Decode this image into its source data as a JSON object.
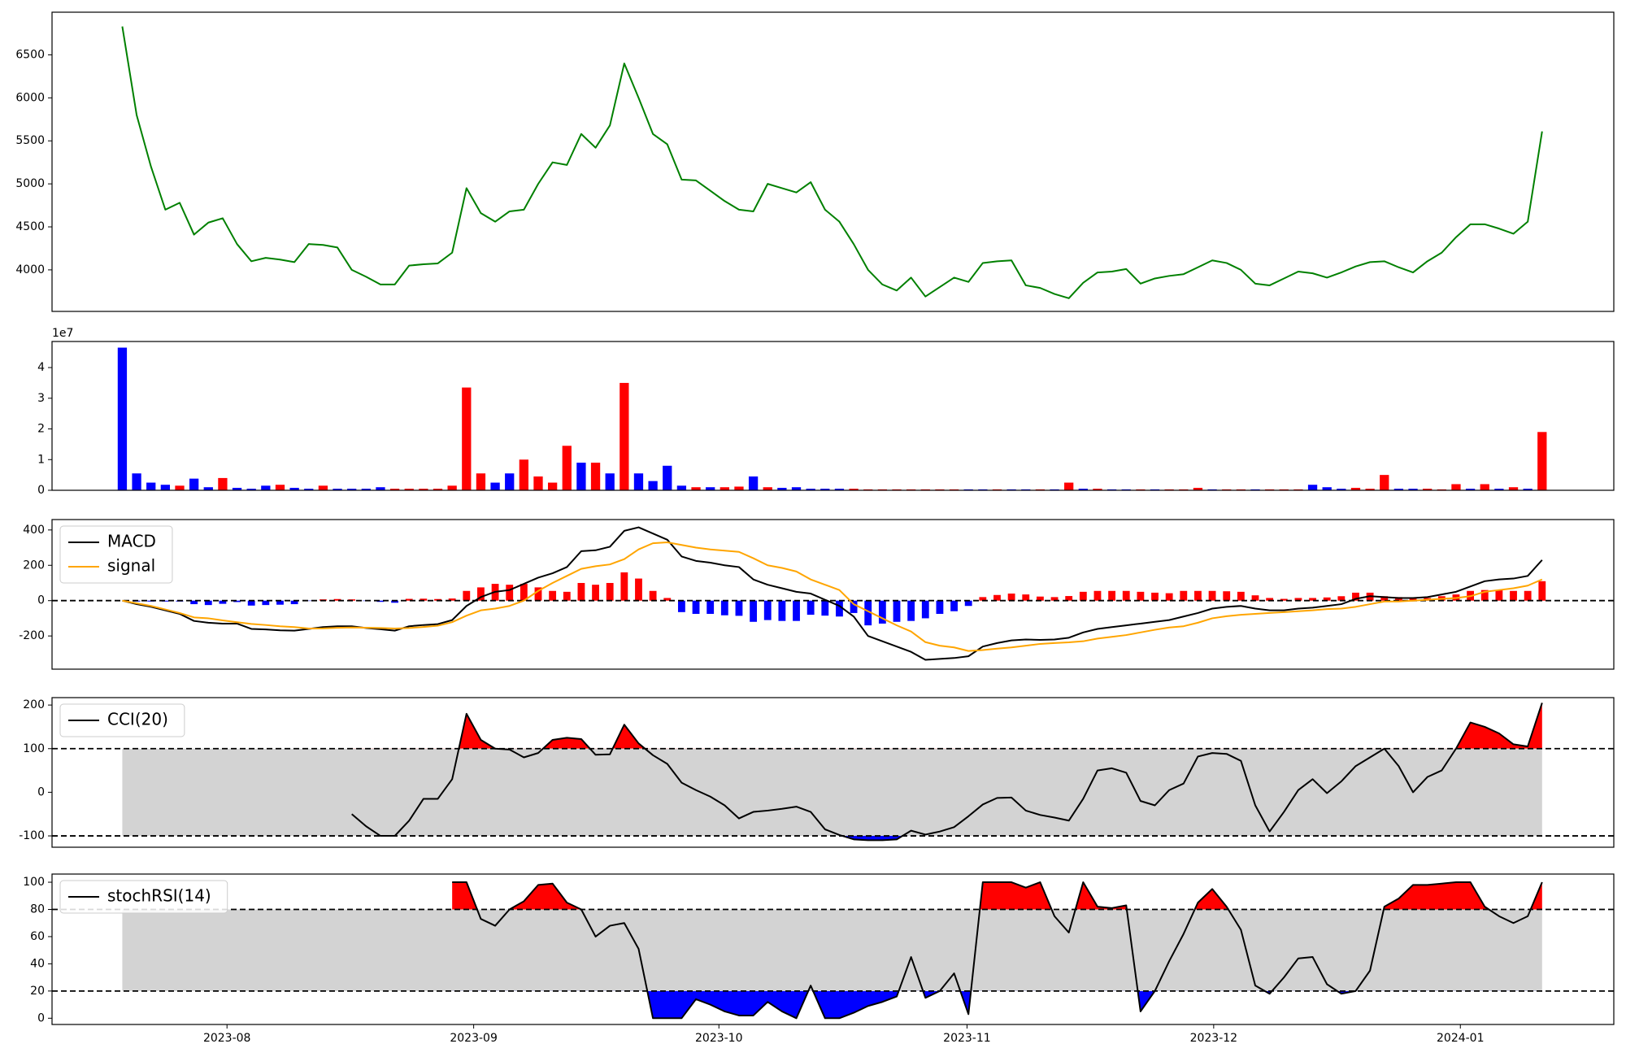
{
  "chart_data": [
    {
      "type": "line",
      "series": [
        {
          "color": "green",
          "values": [
            6830,
            5800,
            5200,
            4700,
            4780,
            4410,
            4550,
            4600,
            4300,
            4100,
            4140,
            4120,
            4090,
            4300,
            4290,
            4260,
            4000,
            3920,
            3830,
            3830,
            4050,
            4065,
            4075,
            4200,
            4950,
            4660,
            4560,
            4680,
            4700,
            5000,
            5250,
            5220,
            5580,
            5420,
            5680,
            6400,
            6000,
            5580,
            5460,
            5050,
            5040,
            4920,
            4800,
            4700,
            4680,
            5000,
            4950,
            4900,
            5020,
            4700,
            4560,
            4300,
            4000,
            3830,
            3760,
            3910,
            3690,
            3800,
            3910,
            3860,
            4080,
            4100,
            4110,
            3820,
            3790,
            3720,
            3670,
            3850,
            3970,
            3980,
            4010,
            3840,
            3900,
            3930,
            3950,
            4030,
            4110,
            4080,
            4000,
            3840,
            3820,
            3900,
            3980,
            3960,
            3910,
            3970,
            4040,
            4090,
            4100,
            4030,
            3970,
            4100,
            4200,
            4380,
            4530,
            4530,
            4480,
            4420,
            4560,
            5610
          ]
        }
      ],
      "ylim": [
        3517,
        6996
      ],
      "yticks": [
        4000,
        4500,
        5000,
        5500,
        6000,
        6500
      ]
    },
    {
      "type": "bar",
      "offset_label": "1e7",
      "values": [
        4.65,
        0.55,
        0.25,
        0.18,
        0.15,
        0.38,
        0.1,
        0.4,
        0.08,
        0.05,
        0.15,
        0.18,
        0.08,
        0.05,
        0.15,
        0.05,
        0.05,
        0.05,
        0.1,
        0.05,
        0.05,
        0.05,
        0.05,
        0.15,
        3.35,
        0.55,
        0.25,
        0.55,
        1.0,
        0.45,
        0.25,
        1.45,
        0.9,
        0.9,
        0.55,
        3.5,
        0.55,
        0.3,
        0.8,
        0.15,
        0.1,
        0.1,
        0.1,
        0.12,
        0.45,
        0.1,
        0.08,
        0.1,
        0.05,
        0.05,
        0.05,
        0.05,
        0.03,
        0.03,
        0.03,
        0.03,
        0.03,
        0.03,
        0.03,
        0.03,
        0.03,
        0.03,
        0.03,
        0.03,
        0.03,
        0.03,
        0.25,
        0.05,
        0.05,
        0.03,
        0.03,
        0.03,
        0.03,
        0.03,
        0.03,
        0.08,
        0.03,
        0.03,
        0.03,
        0.03,
        0.03,
        0.03,
        0.03,
        0.18,
        0.1,
        0.05,
        0.08,
        0.05,
        0.5,
        0.05,
        0.05,
        0.05,
        0.03,
        0.2,
        0.05,
        0.2,
        0.05,
        0.1,
        0.05,
        1.9
      ],
      "colors": [
        "blue",
        "blue",
        "blue",
        "blue",
        "red",
        "blue",
        "blue",
        "red",
        "blue",
        "blue",
        "blue",
        "red",
        "blue",
        "blue",
        "red",
        "blue",
        "blue",
        "blue",
        "blue",
        "red",
        "red",
        "red",
        "red",
        "red",
        "red",
        "red",
        "blue",
        "blue",
        "red",
        "red",
        "red",
        "red",
        "blue",
        "red",
        "blue",
        "red",
        "blue",
        "blue",
        "blue",
        "blue",
        "red",
        "blue",
        "red",
        "red",
        "blue",
        "red",
        "blue",
        "blue",
        "blue",
        "blue",
        "blue",
        "red",
        "red",
        "red",
        "red",
        "red",
        "red",
        "red",
        "red",
        "blue",
        "blue",
        "red",
        "blue",
        "blue",
        "red",
        "blue",
        "red",
        "blue",
        "red",
        "blue",
        "blue",
        "red",
        "blue",
        "red",
        "red",
        "red",
        "blue",
        "red",
        "red",
        "blue",
        "red",
        "red",
        "red",
        "blue",
        "blue",
        "blue",
        "red",
        "red",
        "red",
        "blue",
        "blue",
        "red",
        "red",
        "red",
        "blue",
        "red",
        "blue",
        "red",
        "blue",
        "red"
      ],
      "ylim": [
        0,
        4.85
      ],
      "yticks": [
        0,
        1,
        2,
        3,
        4
      ]
    },
    {
      "type": "combo",
      "legend": "upper left",
      "series": [
        {
          "name": "MACD",
          "color": "black",
          "values": [
            0,
            -20,
            -35,
            -55,
            -75,
            -115,
            -125,
            -130,
            -130,
            -160,
            -163,
            -168,
            -170,
            -160,
            -150,
            -145,
            -145,
            -155,
            -162,
            -170,
            -145,
            -138,
            -133,
            -110,
            -30,
            20,
            50,
            60,
            95,
            130,
            155,
            190,
            280,
            285,
            305,
            395,
            415,
            380,
            345,
            250,
            225,
            215,
            200,
            190,
            120,
            90,
            70,
            50,
            40,
            5,
            -30,
            -90,
            -200,
            -230,
            -260,
            -290,
            -335,
            -330,
            -325,
            -315,
            -260,
            -240,
            -225,
            -220,
            -222,
            -220,
            -210,
            -180,
            -160,
            -150,
            -140,
            -130,
            -120,
            -110,
            -90,
            -70,
            -45,
            -35,
            -30,
            -45,
            -55,
            -55,
            -45,
            -40,
            -30,
            -20,
            10,
            25,
            20,
            15,
            15,
            20,
            35,
            50,
            80,
            110,
            120,
            125,
            140,
            230
          ]
        },
        {
          "name": "signal",
          "color": "orange",
          "values": [
            0,
            -15,
            -30,
            -50,
            -70,
            -95,
            -100,
            -112,
            -122,
            -132,
            -138,
            -145,
            -150,
            -158,
            -157,
            -154,
            -152,
            -153,
            -155,
            -158,
            -155,
            -149,
            -142,
            -122,
            -85,
            -55,
            -45,
            -30,
            0,
            55,
            100,
            140,
            180,
            195,
            205,
            235,
            290,
            325,
            330,
            315,
            300,
            290,
            283,
            276,
            240,
            200,
            185,
            165,
            120,
            90,
            60,
            -20,
            -60,
            -100,
            -140,
            -175,
            -235,
            -255,
            -265,
            -285,
            -280,
            -272,
            -265,
            -255,
            -245,
            -240,
            -236,
            -230,
            -215,
            -205,
            -195,
            -180,
            -165,
            -152,
            -145,
            -125,
            -100,
            -88,
            -80,
            -75,
            -70,
            -65,
            -60,
            -55,
            -48,
            -45,
            -35,
            -20,
            -5,
            -5,
            0,
            5,
            10,
            15,
            25,
            50,
            60,
            70,
            85,
            120
          ]
        }
      ],
      "bars": {
        "values": [
          0,
          -5,
          -5,
          -5,
          -5,
          -20,
          -25,
          -18,
          -8,
          -28,
          -25,
          -23,
          -20,
          -2,
          7,
          9,
          7,
          -2,
          -7,
          -12,
          10,
          11,
          9,
          12,
          55,
          75,
          95,
          90,
          95,
          75,
          55,
          50,
          100,
          90,
          100,
          160,
          125,
          55,
          15,
          -65,
          -75,
          -75,
          -83,
          -86,
          -120,
          -110,
          -115,
          -115,
          -80,
          -85,
          -90,
          -70,
          -140,
          -130,
          -120,
          -115,
          -100,
          -75,
          -60,
          -30,
          20,
          32,
          40,
          35,
          23,
          20,
          26,
          50,
          55,
          55,
          55,
          50,
          45,
          42,
          55,
          55,
          55,
          53,
          50,
          30,
          15,
          10,
          15,
          15,
          18,
          25,
          45,
          45,
          25,
          20,
          15,
          15,
          25,
          35,
          55,
          60,
          60,
          55,
          55,
          110
        ],
        "positive_color": "red",
        "negative_color": "blue"
      },
      "hline": 0,
      "ylim": [
        -388,
        459
      ],
      "yticks": [
        -200,
        0,
        200,
        400
      ]
    },
    {
      "type": "band",
      "legend": "upper left",
      "series": [
        {
          "name": "CCI(20)",
          "color": "black",
          "values": [
            null,
            null,
            null,
            null,
            null,
            null,
            null,
            null,
            null,
            null,
            null,
            null,
            null,
            null,
            null,
            null,
            -50,
            -78,
            -100,
            -100,
            -65,
            -15,
            -15,
            30,
            180,
            120,
            100,
            98,
            80,
            90,
            120,
            125,
            122,
            86,
            87,
            155,
            112,
            85,
            65,
            22,
            5,
            -10,
            -30,
            -60,
            -45,
            -42,
            -38,
            -33,
            -45,
            -85,
            -98,
            -108,
            -110,
            -110,
            -108,
            -88,
            -97,
            -90,
            -80,
            -55,
            -28,
            -13,
            -12,
            -42,
            -52,
            -58,
            -65,
            -15,
            50,
            55,
            45,
            -20,
            -30,
            5,
            20,
            82,
            90,
            88,
            72,
            -30,
            -90,
            -45,
            5,
            30,
            -2,
            25,
            60,
            80,
            100,
            60,
            0,
            35,
            50,
            100,
            160,
            150,
            135,
            110,
            105,
            205
          ]
        }
      ],
      "levels": [
        -100,
        100
      ],
      "band_color": "lightgray",
      "above_color": "red",
      "below_color": "blue",
      "ylim": [
        -126,
        217
      ],
      "yticks": [
        -100,
        0,
        100,
        200
      ]
    },
    {
      "type": "band",
      "legend": "upper left",
      "series": [
        {
          "name": "stochRSI(14)",
          "color": "black",
          "values": [
            null,
            null,
            null,
            null,
            null,
            null,
            null,
            null,
            null,
            null,
            null,
            null,
            null,
            null,
            null,
            null,
            null,
            null,
            null,
            null,
            null,
            null,
            null,
            100,
            100,
            73,
            68,
            80,
            86,
            98,
            99,
            85,
            80,
            60,
            68,
            70,
            51,
            0,
            0,
            0,
            14,
            10,
            5,
            2,
            2,
            12,
            5,
            0,
            24,
            0,
            0,
            4,
            9,
            12,
            16,
            45,
            15,
            20,
            33,
            3,
            100,
            100,
            100,
            96,
            100,
            75,
            63,
            100,
            82,
            81,
            83,
            5,
            20,
            42,
            62,
            85,
            95,
            82,
            65,
            24,
            18,
            30,
            44,
            45,
            25,
            18,
            20,
            35,
            82,
            88,
            98,
            98,
            99,
            100,
            100,
            82,
            75,
            70,
            75,
            100
          ]
        }
      ],
      "levels": [
        20,
        80
      ],
      "band_color": "lightgray",
      "above_color": "red",
      "below_color": "blue",
      "ylim": [
        -4.6,
        106
      ],
      "yticks": [
        0,
        20,
        40,
        60,
        80,
        100
      ],
      "xlim": [
        -4.9,
        104.0
      ],
      "xticks": [
        {
          "value": 7.3,
          "label": "2023-08"
        },
        {
          "value": 24.5,
          "label": "2023-09"
        },
        {
          "value": 41.6,
          "label": "2023-10"
        },
        {
          "value": 58.9,
          "label": "2023-11"
        },
        {
          "value": 76.1,
          "label": "2023-12"
        },
        {
          "value": 93.3,
          "label": "2024-01"
        }
      ]
    }
  ]
}
